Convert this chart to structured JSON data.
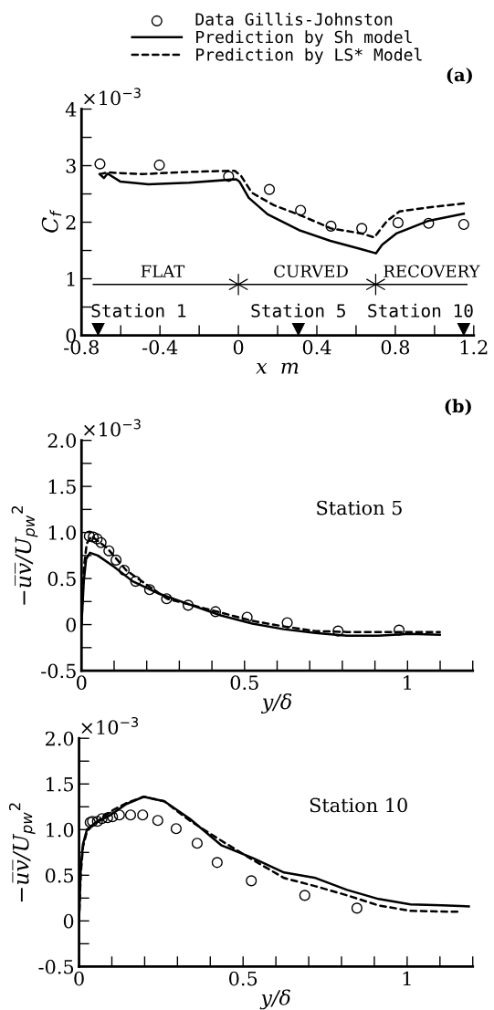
{
  "chart_data": [
    {
      "type": "scatter",
      "title": "(a)",
      "xlabel": "x  m",
      "ylabel": "C$_{f}$",
      "legend": "top",
      "xlim": [
        -0.8,
        1.2
      ],
      "xticks": [
        -0.8,
        {
          "value": -0.6,
          "label": null
        },
        -0.4,
        {
          "value": -0.2,
          "label": null
        },
        0,
        {
          "value": 0.2,
          "label": null
        },
        0.4,
        {
          "value": 0.6,
          "label": null
        },
        0.8,
        {
          "value": 1.0,
          "label": null
        },
        1.2
      ],
      "ylim": [
        0,
        4
      ],
      "yticks": [
        0,
        {
          "value": 0.5,
          "label": null
        },
        1,
        {
          "value": 1.5,
          "label": null
        },
        2,
        {
          "value": 2.5,
          "label": null
        },
        3,
        {
          "value": 3.5,
          "label": null
        },
        4
      ],
      "series": [
        {
          "name": "Data Gillis-Johnston",
          "marker": "circle",
          "color": "#000000",
          "x": [
            -0.706,
            -0.403,
            -0.05,
            0.158,
            0.317,
            0.472,
            0.629,
            0.814,
            0.97,
            1.149
          ],
          "values": [
            3.03,
            3.01,
            2.81,
            2.58,
            2.21,
            1.93,
            1.89,
            1.99,
            1.98,
            1.96
          ]
        },
        {
          "name": "Prediction by Sh model",
          "type": "line",
          "line_style": "solid",
          "color": "#000000",
          "x": [
            -0.707,
            -0.686,
            -0.667,
            -0.603,
            -0.459,
            -0.251,
            -0.011,
            0.005,
            0.053,
            0.149,
            0.309,
            0.469,
            0.629,
            0.701,
            0.733,
            0.805,
            0.965,
            1.149
          ],
          "values": [
            2.85,
            2.78,
            2.86,
            2.72,
            2.67,
            2.7,
            2.76,
            2.72,
            2.43,
            2.14,
            1.86,
            1.67,
            1.52,
            1.45,
            1.6,
            1.8,
            2.02,
            2.15
          ]
        },
        {
          "name": "Prediction by LS* Model",
          "type": "line",
          "line_style": "dashed",
          "color": "#000000",
          "x": [
            -0.707,
            -0.667,
            -0.491,
            -0.251,
            -0.019,
            0.013,
            0.069,
            0.181,
            0.325,
            0.472,
            0.629,
            0.693,
            0.757,
            0.821,
            0.965,
            1.149
          ],
          "values": [
            2.85,
            2.88,
            2.85,
            2.89,
            2.91,
            2.82,
            2.52,
            2.3,
            2.11,
            1.89,
            1.8,
            1.73,
            2.02,
            2.19,
            2.26,
            2.33
          ]
        },
        {
          "type": "line",
          "line_style": "solid",
          "color": "#000000",
          "x": [
            -0.74,
            1.165
          ],
          "values": [
            0.9,
            0.9
          ]
        },
        {
          "marker": "cross",
          "color": "#000000",
          "x": [
            0,
            0.7
          ],
          "values": [
            0.9,
            0.9
          ]
        },
        {
          "marker": "triangle",
          "color": "#000000",
          "x": [
            -0.715,
            0.306,
            1.149
          ],
          "values": [
            0.1,
            0.1,
            0.1
          ],
          "value_labels": [
            "Station 1",
            "Station 5",
            "Station 10"
          ]
        }
      ],
      "annotations": [
        "×10$^{−3}$",
        {
          "text": "FLAT",
          "x": -0.387,
          "y": 0.9
        },
        {
          "text": "CURVED",
          "x": 0.37,
          "y": 0.9
        },
        {
          "text": "RECOVERY",
          "x": 0.984,
          "y": 0.9
        }
      ]
    },
    {
      "type": "scatter",
      "title": "(b)",
      "xlabel": "y/δ",
      "ylabel": "−u̅v̅/U$_{pw}$$^{2}$",
      "xlim": [
        0,
        1.2
      ],
      "xticks": [
        0,
        {
          "value": 0.1,
          "label": null
        },
        {
          "value": 0.2,
          "label": null
        },
        {
          "value": 0.3,
          "label": null
        },
        {
          "value": 0.4,
          "label": null
        },
        0.5,
        {
          "value": 0.6,
          "label": null
        },
        {
          "value": 0.7,
          "label": null
        },
        {
          "value": 0.8,
          "label": null
        },
        {
          "value": 0.9,
          "label": null
        },
        1,
        {
          "value": 1.1,
          "label": null
        },
        {
          "value": 1.2,
          "label": null
        }
      ],
      "ylim": [
        -0.5,
        2.0
      ],
      "yticks": [
        -0.5,
        {
          "value": -0.25,
          "label": null
        },
        0,
        {
          "value": 0.25,
          "label": null
        },
        0.5,
        {
          "value": 0.75,
          "label": null
        },
        {
          "value": 1,
          "label": "1.0"
        },
        {
          "value": 1.25,
          "label": null
        },
        1.5,
        {
          "value": 1.75,
          "label": null
        },
        {
          "value": 2,
          "label": "2.0"
        }
      ],
      "series": [
        {
          "marker": "circle",
          "color": "#000000",
          "x": [
            0.024,
            0.036,
            0.048,
            0.06,
            0.084,
            0.106,
            0.131,
            0.166,
            0.209,
            0.261,
            0.327,
            0.411,
            0.508,
            0.631,
            0.787,
            0.974
          ],
          "values": [
            0.96,
            0.95,
            0.93,
            0.89,
            0.8,
            0.7,
            0.59,
            0.47,
            0.38,
            0.28,
            0.21,
            0.14,
            0.08,
            0.02,
            -0.07,
            -0.06
          ]
        },
        {
          "type": "line",
          "line_style": "solid",
          "color": "#000000",
          "x": [
            0,
            0.007,
            0.014,
            0.026,
            0.05,
            0.099,
            0.157,
            0.234,
            0.33,
            0.427,
            0.524,
            0.62,
            0.717,
            0.814,
            0.91,
            1.007,
            1.099
          ],
          "values": [
            0,
            0.47,
            0.71,
            0.78,
            0.75,
            0.63,
            0.47,
            0.34,
            0.22,
            0.1,
            0.01,
            -0.05,
            -0.09,
            -0.12,
            -0.12,
            -0.1,
            -0.11
          ]
        },
        {
          "type": "line",
          "line_style": "dashed",
          "color": "#000000",
          "x": [
            0,
            0.007,
            0.016,
            0.031,
            0.079,
            0.137,
            0.205,
            0.263,
            0.33,
            0.427,
            0.524,
            0.62,
            0.717,
            0.814,
            0.91,
            1.099
          ],
          "values": [
            0,
            0.61,
            0.88,
            0.96,
            0.83,
            0.59,
            0.42,
            0.28,
            0.22,
            0.13,
            0.04,
            -0.02,
            -0.07,
            -0.08,
            -0.08,
            -0.08
          ]
        }
      ],
      "annotations": [
        "×10$^{−3}$",
        "Station 5"
      ]
    },
    {
      "type": "scatter",
      "xlabel": "y/δ",
      "ylabel": "−u̅v̅/U$_{pw}$$^{2}$",
      "xlim": [
        0,
        1.2
      ],
      "xticks": [
        0,
        {
          "value": 0.1,
          "label": null
        },
        {
          "value": 0.2,
          "label": null
        },
        {
          "value": 0.3,
          "label": null
        },
        {
          "value": 0.4,
          "label": null
        },
        0.5,
        {
          "value": 0.6,
          "label": null
        },
        {
          "value": 0.7,
          "label": null
        },
        {
          "value": 0.8,
          "label": null
        },
        {
          "value": 0.9,
          "label": null
        },
        1,
        {
          "value": 1.1,
          "label": null
        },
        {
          "value": 1.2,
          "label": null
        }
      ],
      "ylim": [
        -0.5,
        2.0
      ],
      "yticks": [
        -0.5,
        {
          "value": -0.25,
          "label": null
        },
        0,
        {
          "value": 0.25,
          "label": null
        },
        0.5,
        {
          "value": 0.75,
          "label": null
        },
        {
          "value": 1,
          "label": "1.0"
        },
        {
          "value": 1.25,
          "label": null
        },
        1.5,
        {
          "value": 1.75,
          "label": null
        },
        {
          "value": 2,
          "label": "2.0"
        }
      ],
      "series": [
        {
          "marker": "circle",
          "color": "#000000",
          "x": [
            0.034,
            0.041,
            0.056,
            0.07,
            0.087,
            0.102,
            0.123,
            0.157,
            0.194,
            0.24,
            0.296,
            0.36,
            0.421,
            0.525,
            0.688,
            0.847
          ],
          "values": [
            1.08,
            1.09,
            1.09,
            1.12,
            1.13,
            1.14,
            1.16,
            1.16,
            1.16,
            1.1,
            1.01,
            0.85,
            0.64,
            0.44,
            0.28,
            0.14
          ]
        },
        {
          "type": "line",
          "line_style": "solid",
          "color": "#000000",
          "x": [
            0,
            0.005,
            0.012,
            0.024,
            0.048,
            0.096,
            0.144,
            0.197,
            0.26,
            0.337,
            0.433,
            0.529,
            0.625,
            0.721,
            0.817,
            0.913,
            1.01,
            1.106,
            1.188
          ],
          "values": [
            0,
            0.57,
            0.84,
            1.0,
            1.07,
            1.16,
            1.28,
            1.36,
            1.31,
            1.12,
            0.83,
            0.69,
            0.53,
            0.47,
            0.34,
            0.24,
            0.18,
            0.17,
            0.16
          ]
        },
        {
          "type": "line",
          "line_style": "dashed",
          "color": "#000000",
          "x": [
            0,
            0.005,
            0.012,
            0.024,
            0.048,
            0.096,
            0.144,
            0.197,
            0.26,
            0.337,
            0.433,
            0.529,
            0.625,
            0.721,
            0.817,
            0.913,
            1.01,
            1.154
          ],
          "values": [
            0,
            0.5,
            0.81,
            0.98,
            1.07,
            1.2,
            1.29,
            1.36,
            1.31,
            1.1,
            0.88,
            0.67,
            0.47,
            0.38,
            0.28,
            0.17,
            0.11,
            0.1
          ]
        }
      ],
      "annotations": [
        "×10$^{−3}$",
        "Station 10"
      ]
    }
  ]
}
